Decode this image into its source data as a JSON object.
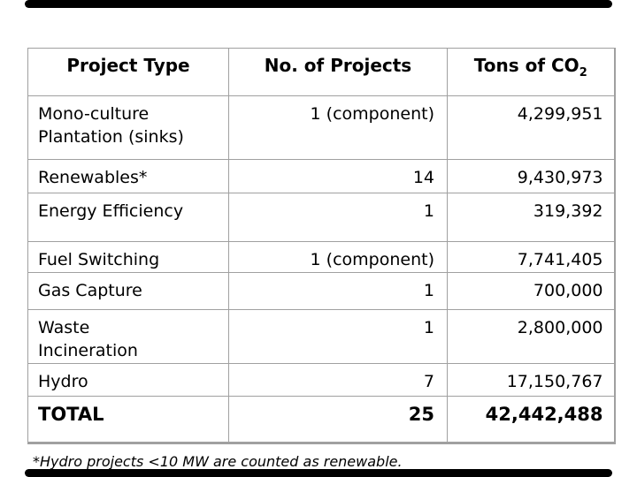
{
  "decor": {
    "bar_color": "#000000"
  },
  "table": {
    "border_color": "#a0a0a0",
    "header": {
      "col1": "Project Type",
      "col2": "No. of  Projects",
      "col3_main": "Tons of CO",
      "col3_sub": "2"
    },
    "rows": [
      {
        "type": "Mono-culture\nPlantation (sinks)",
        "projects": "1 (component)",
        "tons": "4,299,951"
      },
      {
        "type": "Renewables*",
        "projects": "14",
        "tons": "9,430,973"
      },
      {
        "type": "Energy Efficiency",
        "projects": "1",
        "tons": "319,392"
      },
      {
        "type": "Fuel Switching",
        "projects": "1 (component)",
        "tons": "7,741,405"
      },
      {
        "type": "Gas Capture",
        "projects": "1",
        "tons": "700,000"
      },
      {
        "type": "Waste\nIncineration",
        "projects": "1",
        "tons": "2,800,000"
      },
      {
        "type": "Hydro",
        "projects": "7",
        "tons": "17,150,767"
      },
      {
        "type": "TOTAL",
        "projects": "25",
        "tons": "42,442,488",
        "total": true
      }
    ]
  },
  "footnote": "*Hydro projects <10 MW are counted as renewable."
}
